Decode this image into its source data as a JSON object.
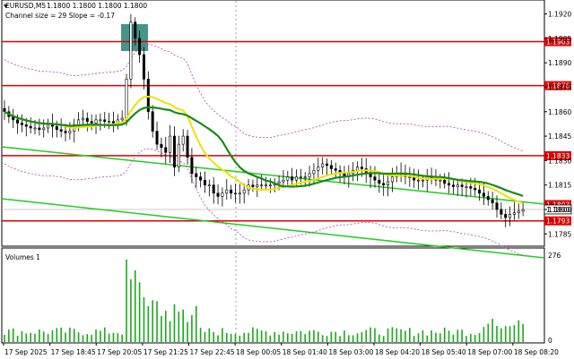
{
  "header": {
    "symbol_label": "EURUSD,M5",
    "ohlc": "1.1800 1.1800 1.1800 1.1800",
    "indicator_label": "Channel size = 29 Slope = -0.17"
  },
  "volume_pane": {
    "label": "Volumes 1",
    "axis_top": "276",
    "axis_zero": "0"
  },
  "colors": {
    "up_candle": "#000000",
    "down_candle": "#000000",
    "level_line": "#dd0000",
    "ma_fast": "#f0e000",
    "ma_slow": "#1a8a1a",
    "channel": "#22cc22",
    "envelope": "#b040b0",
    "volume_bar": "#1aa81a",
    "highlight_box": "#3a8f86"
  },
  "price_axis": {
    "ticks": [
      "1.1920",
      "1.1905",
      "1.1890",
      "1.1875",
      "1.1860",
      "1.1845",
      "1.1830",
      "1.1815",
      "1.1800",
      "1.1785"
    ]
  },
  "levels": [
    {
      "price": 1.1903,
      "label": "1.1903"
    },
    {
      "price": 1.1876,
      "label": "1.1876"
    },
    {
      "price": 1.1833,
      "label": "1.1833"
    },
    {
      "price": 1.1793,
      "label": "1.1793"
    }
  ],
  "current_price": {
    "price": 1.18,
    "label": "1.1800",
    "hidden_label": "1.1803"
  },
  "time_axis": {
    "labels": [
      "17 Sep 2025",
      "17 Sep 18:45",
      "17 Sep 20:05",
      "17 Sep 21:25",
      "17 Sep 22:45",
      "18 Sep 00:05",
      "18 Sep 01:40",
      "18 Sep 03:00",
      "18 Sep 04:20",
      "18 Sep 05:40",
      "18 Sep 07:00",
      "18 Sep 08:20"
    ]
  },
  "chart_data": {
    "type": "candlestick",
    "symbol": "EURUSD",
    "timeframe": "M5",
    "ylim": [
      1.1778,
      1.1928
    ],
    "candle_count": 120,
    "close_path": [
      1.186,
      1.1857,
      1.1855,
      1.1853,
      1.1852,
      1.1851,
      1.185,
      1.185,
      1.1849,
      1.185,
      1.1852,
      1.1851,
      1.1849,
      1.1848,
      1.1847,
      1.1848,
      1.1852,
      1.1855,
      1.1856,
      1.1854,
      1.1853,
      1.1855,
      1.1855,
      1.1854,
      1.1854,
      1.1853,
      1.1855,
      1.1856,
      1.188,
      1.1915,
      1.1905,
      1.1895,
      1.188,
      1.186,
      1.1848,
      1.184,
      1.1838,
      1.1835,
      1.1845,
      1.1826,
      1.184,
      1.1845,
      1.1832,
      1.1822,
      1.182,
      1.1818,
      1.1815,
      1.1815,
      1.181,
      1.1808,
      1.181,
      1.1812,
      1.181,
      1.181,
      1.181,
      1.1812,
      1.1815,
      1.1814,
      1.1815,
      1.1815,
      1.1815,
      1.1815,
      1.1816,
      1.1817,
      1.1818,
      1.182,
      1.1818,
      1.182,
      1.182,
      1.182,
      1.1822,
      1.1824,
      1.1826,
      1.1828,
      1.1827,
      1.1825,
      1.1824,
      1.1822,
      1.182,
      1.1822,
      1.1824,
      1.1826,
      1.1825,
      1.1822,
      1.182,
      1.1818,
      1.1816,
      1.1815,
      1.1817,
      1.182,
      1.1822,
      1.1822,
      1.182,
      1.182,
      1.1818,
      1.1818,
      1.1818,
      1.182,
      1.1819,
      1.1818,
      1.1818,
      1.1816,
      1.1815,
      1.1814,
      1.1815,
      1.1814,
      1.1814,
      1.1813,
      1.1812,
      1.181,
      1.1808,
      1.1806,
      1.1804,
      1.18,
      1.1797,
      1.1795,
      1.1797,
      1.1798,
      1.1799,
      1.18
    ],
    "spike_high": 1.192,
    "volume_peak": 276
  }
}
